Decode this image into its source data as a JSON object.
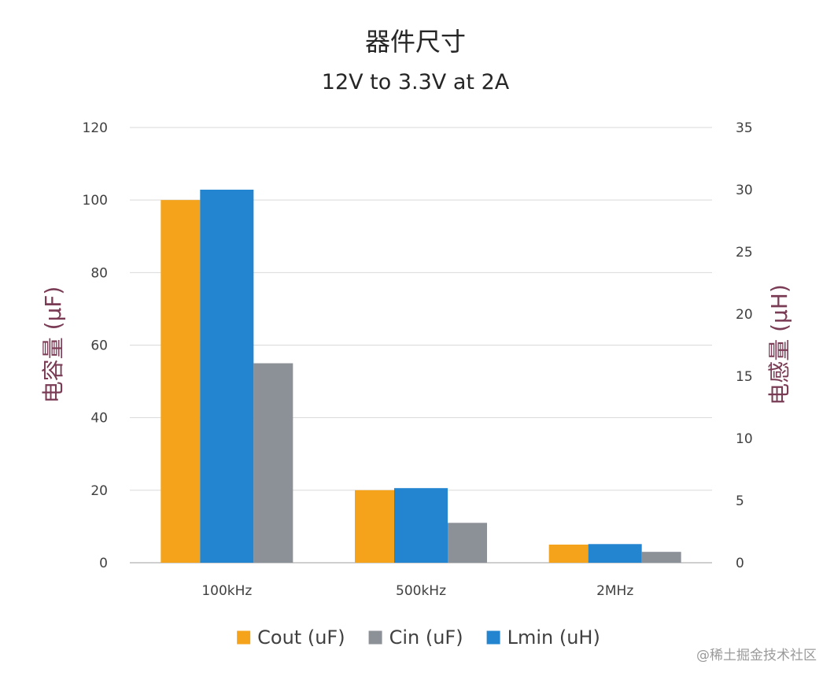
{
  "watermark": "@稀土掘金技术社区",
  "chart_data": {
    "type": "bar",
    "title": "器件尺寸",
    "subtitle": "12V to 3.3V at 2A",
    "categories": [
      "100kHz",
      "500kHz",
      "2MHz"
    ],
    "series": [
      {
        "name": "Cout (uF)",
        "axis": "left",
        "color": "#f5a31a",
        "values": [
          100,
          20,
          5
        ]
      },
      {
        "name": "Lmin (uH)",
        "axis": "right",
        "color": "#2384d0",
        "values": [
          30,
          6,
          1.5
        ]
      },
      {
        "name": "Cin (uF)",
        "axis": "left",
        "color": "#8c9097",
        "values": [
          55,
          11,
          3
        ]
      }
    ],
    "legend_order": [
      "Cout (uF)",
      "Cin (uF)",
      "Lmin (uH)"
    ],
    "ylabel": "电容量 (μF)",
    "ylabel_right": "电感量 (μH)",
    "ylim": [
      0,
      120
    ],
    "ylim_right": [
      0,
      35
    ],
    "yticks": [
      "0",
      "20",
      "40",
      "60",
      "80",
      "100",
      "120"
    ],
    "yticks_right": [
      "0",
      "5",
      "10",
      "15",
      "20",
      "25",
      "30",
      "35"
    ],
    "grid": true,
    "legend_position": "bottom"
  }
}
